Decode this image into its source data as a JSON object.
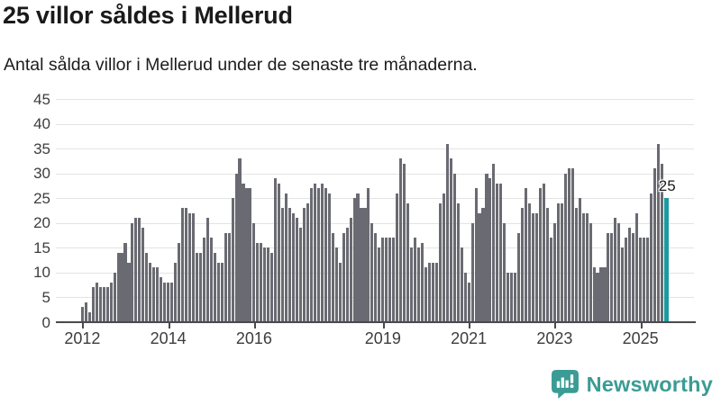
{
  "header": {
    "title": "25 villor såldes i Mellerud",
    "subtitle": "Antal sålda villor i Mellerud under de senaste tre månaderna."
  },
  "chart_data": {
    "type": "bar",
    "title": "25 villor såldes i Mellerud",
    "xlabel": "",
    "ylabel": "",
    "ylim": [
      0,
      45
    ],
    "y_ticks": [
      45,
      40,
      35,
      30,
      25,
      20,
      15,
      10,
      5,
      0
    ],
    "x_tick_years": [
      "2012",
      "2014",
      "2016",
      "2019",
      "2021",
      "2023",
      "2025"
    ],
    "grid": "horizontal",
    "frequency": "monthly",
    "start_month": "2012-01",
    "end_month": "2025-08",
    "unit": "sålda villor under de senaste tre månaderna",
    "values": [
      3,
      4,
      2,
      7,
      8,
      7,
      7,
      7,
      8,
      10,
      14,
      14,
      16,
      12,
      20,
      21,
      21,
      19,
      14,
      12,
      11,
      11,
      9,
      8,
      8,
      8,
      12,
      16,
      23,
      23,
      22,
      22,
      14,
      14,
      17,
      21,
      17,
      14,
      12,
      12,
      18,
      18,
      25,
      30,
      33,
      28,
      27,
      27,
      20,
      16,
      16,
      15,
      15,
      14,
      29,
      28,
      23,
      26,
      23,
      22,
      21,
      19,
      23,
      24,
      27,
      28,
      27,
      28,
      27,
      26,
      18,
      15,
      12,
      18,
      19,
      21,
      25,
      26,
      23,
      23,
      27,
      20,
      18,
      15,
      17,
      17,
      17,
      17,
      26,
      33,
      32,
      24,
      15,
      17,
      15,
      16,
      11,
      12,
      12,
      12,
      24,
      26,
      36,
      33,
      30,
      24,
      15,
      10,
      8,
      20,
      27,
      22,
      23,
      30,
      29,
      32,
      28,
      28,
      20,
      10,
      10,
      10,
      18,
      23,
      27,
      24,
      22,
      22,
      27,
      28,
      23,
      17,
      20,
      24,
      24,
      30,
      31,
      31,
      23,
      25,
      22,
      22,
      20,
      11,
      10,
      11,
      11,
      18,
      18,
      21,
      20,
      15,
      17,
      19,
      18,
      22,
      17,
      17,
      17,
      26,
      31,
      36,
      32,
      25
    ],
    "highlight_last_bar": {
      "value": 25,
      "annotation_label": "25"
    },
    "legend": []
  },
  "annotation": {
    "label": "25"
  },
  "colors": {
    "bar": "#6a6a72",
    "highlight": "#1b9aa0",
    "grid": "#e3e3e3",
    "axis": "#4a4a4a",
    "brand": "#3a9c94",
    "text": "#1a1a1a"
  },
  "footer": {
    "brand": "Newsworthy"
  },
  "icons": {
    "logo": "newsworthy-speech-bubble-bar-chart-icon"
  }
}
